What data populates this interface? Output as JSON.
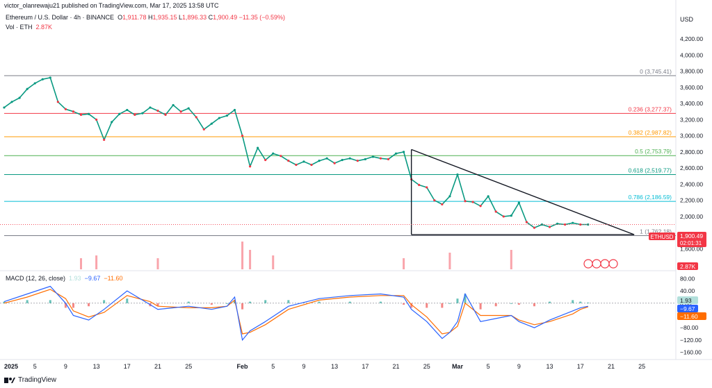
{
  "header": {
    "published": "victor_olanrewaju21 published on TradingView.com, Mar 17, 2025 13:58 UTC"
  },
  "symbol": {
    "name": "Ethereum / U.S. Dollar · 4h · BINANCE",
    "o_label": "O",
    "o": "1,911.78",
    "h_label": "H",
    "h": "1,935.15",
    "l_label": "L",
    "l": "1,896.33",
    "c_label": "C",
    "c": "1,900.49",
    "change": "−11.35 (−0.59%)"
  },
  "volume": {
    "label": "Vol · ETH",
    "value": "2.87K",
    "badge": "2.87K"
  },
  "macd": {
    "label": "MACD (12, 26, close)",
    "hist": "1.93",
    "macd": "−9.67",
    "signal": "−11.60"
  },
  "price_badge": {
    "symbol": "ETHUSD",
    "price": "1,900.49",
    "countdown": "02:01:31"
  },
  "axis": {
    "currency": "USD",
    "price_ticks": [
      {
        "v": 4200,
        "t": "4,200.00"
      },
      {
        "v": 4000,
        "t": "4,000.00"
      },
      {
        "v": 3800,
        "t": "3,800.00"
      },
      {
        "v": 3600,
        "t": "3,600.00"
      },
      {
        "v": 3400,
        "t": "3,400.00"
      },
      {
        "v": 3200,
        "t": "3,200.00"
      },
      {
        "v": 3000,
        "t": "3,000.00"
      },
      {
        "v": 2800,
        "t": "2,800.00"
      },
      {
        "v": 2600,
        "t": "2,600.00"
      },
      {
        "v": 2400,
        "t": "2,400.00"
      },
      {
        "v": 2200,
        "t": "2,200.00"
      },
      {
        "v": 2000,
        "t": "2,000.00"
      },
      {
        "v": 1600,
        "t": "1,600.00"
      }
    ],
    "macd_ticks": [
      {
        "v": 80,
        "t": "80.00"
      },
      {
        "v": 40,
        "t": "40.00"
      },
      {
        "v": 0,
        "t": "0.00"
      },
      {
        "v": -40,
        "t": "−40.00"
      },
      {
        "v": -80,
        "t": "−80.00"
      },
      {
        "v": -120,
        "t": "−120.00"
      },
      {
        "v": -160,
        "t": "−160.00"
      }
    ],
    "time_ticks": [
      {
        "d": 0,
        "t": "2025",
        "bold": true
      },
      {
        "d": 4,
        "t": "5"
      },
      {
        "d": 8,
        "t": "9"
      },
      {
        "d": 12,
        "t": "13"
      },
      {
        "d": 16,
        "t": "17"
      },
      {
        "d": 20,
        "t": "21"
      },
      {
        "d": 24,
        "t": "25"
      },
      {
        "d": 31,
        "t": "Feb",
        "bold": true
      },
      {
        "d": 35,
        "t": "5"
      },
      {
        "d": 39,
        "t": "9"
      },
      {
        "d": 43,
        "t": "13"
      },
      {
        "d": 47,
        "t": "17"
      },
      {
        "d": 51,
        "t": "21"
      },
      {
        "d": 55,
        "t": "25"
      },
      {
        "d": 59,
        "t": "Mar",
        "bold": true
      },
      {
        "d": 63,
        "t": "5"
      },
      {
        "d": 67,
        "t": "9"
      },
      {
        "d": 71,
        "t": "13"
      },
      {
        "d": 75,
        "t": "17"
      },
      {
        "d": 79,
        "t": "21"
      },
      {
        "d": 83,
        "t": "25"
      }
    ]
  },
  "fib_levels": [
    {
      "label": "0 (3,745.41)",
      "value": 3745.41,
      "color": "#787b86"
    },
    {
      "label": "0.236 (3,277.37)",
      "value": 3277.37,
      "color": "#f23645"
    },
    {
      "label": "0.382 (2,987.82)",
      "value": 2987.82,
      "color": "#ff9800"
    },
    {
      "label": "0.5 (2,753.79)",
      "value": 2753.79,
      "color": "#4caf50"
    },
    {
      "label": "0.618 (2,519.77)",
      "value": 2519.77,
      "color": "#089981"
    },
    {
      "label": "0.786 (2,186.59)",
      "value": 2186.59,
      "color": "#00bcd4"
    },
    {
      "label": "1 (1,762.18)",
      "value": 1762.18,
      "color": "#787b86"
    }
  ],
  "chart_data": {
    "type": "line",
    "title": "Ethereum / U.S. Dollar · 4h · BINANCE",
    "ylabel": "USD",
    "ylim": [
      1500,
      4330
    ],
    "x_unit": "days since Jan 1 2025",
    "xlim": [
      0,
      86.3
    ],
    "series": [
      {
        "name": "ETHUSD close (approx.)",
        "x": [
          0,
          1,
          2,
          3,
          4,
          5,
          6,
          7,
          8,
          9,
          10,
          11,
          12,
          13,
          14,
          15,
          16,
          17,
          18,
          19,
          20,
          21,
          22,
          23,
          24,
          25,
          26,
          27,
          28,
          29,
          30,
          31,
          32,
          33,
          34,
          35,
          36,
          37,
          38,
          39,
          40,
          41,
          42,
          43,
          44,
          45,
          46,
          47,
          48,
          49,
          50,
          51,
          52,
          53,
          54,
          55,
          56,
          57,
          58,
          59,
          60,
          61,
          62,
          63,
          64,
          65,
          66,
          67,
          68,
          69,
          70,
          71,
          72,
          73,
          74,
          75,
          76
        ],
        "values": [
          3350,
          3420,
          3470,
          3580,
          3650,
          3700,
          3720,
          3420,
          3330,
          3300,
          3260,
          3270,
          3200,
          2950,
          3170,
          3270,
          3320,
          3260,
          3280,
          3350,
          3310,
          3260,
          3380,
          3300,
          3340,
          3230,
          3080,
          3150,
          3220,
          3250,
          3320,
          3000,
          2620,
          2850,
          2700,
          2780,
          2750,
          2690,
          2640,
          2680,
          2640,
          2690,
          2720,
          2660,
          2700,
          2720,
          2690,
          2710,
          2740,
          2720,
          2710,
          2780,
          2800,
          2460,
          2390,
          2360,
          2200,
          2150,
          2250,
          2520,
          2190,
          2180,
          2130,
          2250,
          2060,
          2000,
          2010,
          2170,
          1930,
          1860,
          1900,
          1870,
          1910,
          1900,
          1920,
          1900,
          1900
        ]
      },
      {
        "name": "Descending trendline",
        "x": [
          53,
          82
        ],
        "values": [
          2830,
          1775
        ]
      },
      {
        "name": "Triangle base",
        "x": [
          53,
          82
        ],
        "values": [
          1775,
          1775
        ]
      }
    ],
    "volume": {
      "x": [
        10,
        12,
        20,
        31,
        32,
        35,
        52,
        58,
        66
      ],
      "values": [
        0.4,
        0.5,
        0.4,
        1.0,
        0.7,
        0.5,
        0.4,
        0.6,
        0.7
      ]
    },
    "macd_panel": {
      "ylim": [
        -170,
        90
      ],
      "x": [
        0,
        3,
        6,
        8,
        9,
        11,
        13,
        16,
        19,
        20,
        24,
        27,
        29,
        30,
        31,
        32,
        34,
        37,
        41,
        45,
        49,
        52,
        53,
        55,
        57,
        58,
        59,
        60,
        62,
        64,
        66,
        67,
        69,
        71,
        74,
        75,
        76
      ],
      "macd": [
        5,
        30,
        55,
        0,
        -40,
        -55,
        -20,
        40,
        -5,
        -20,
        -10,
        -20,
        -10,
        20,
        -120,
        -90,
        -60,
        -10,
        15,
        25,
        30,
        20,
        -20,
        -60,
        -115,
        -95,
        -60,
        30,
        -60,
        -50,
        -40,
        -60,
        -80,
        -55,
        -25,
        -15,
        -10
      ],
      "signal": [
        0,
        20,
        45,
        15,
        -25,
        -45,
        -30,
        25,
        5,
        -10,
        -15,
        -15,
        -10,
        10,
        -100,
        -95,
        -70,
        -20,
        10,
        20,
        25,
        25,
        -5,
        -45,
        -100,
        -95,
        -75,
        0,
        -40,
        -40,
        -40,
        -55,
        -70,
        -60,
        -35,
        -20,
        -12
      ],
      "histogram": [
        5,
        10,
        10,
        -15,
        -15,
        -10,
        10,
        15,
        -10,
        -10,
        5,
        -5,
        0,
        10,
        -20,
        5,
        10,
        10,
        5,
        5,
        5,
        -5,
        -15,
        -15,
        -15,
        0,
        15,
        30,
        -20,
        -10,
        0,
        -5,
        -10,
        5,
        10,
        5,
        2
      ]
    }
  }
}
